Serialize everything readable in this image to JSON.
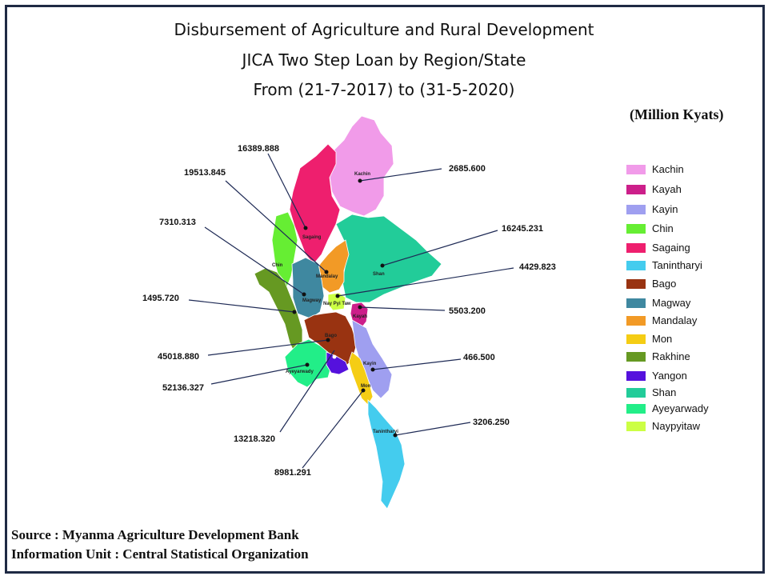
{
  "title": {
    "line1": "Disbursement of Agriculture and Rural Development",
    "line2": "JICA Two Step Loan by Region/State",
    "line3": "From (21-7-2017) to (31-5-2020)"
  },
  "unit": "(Million  Kyats)",
  "source": {
    "line1": "Source : Myanma Agriculture Development Bank",
    "line2": "Information Unit : Central Statistical Organization"
  },
  "legend": [
    {
      "label": "Kachin",
      "color": "#f19be9"
    },
    {
      "label": "Kayah",
      "color": "#cc1f8a"
    },
    {
      "label": "Kayin",
      "color": "#9f9ff0"
    },
    {
      "label": "Chin",
      "color": "#66ee33"
    },
    {
      "label": "Sagaing",
      "color": "#ee1f6e"
    },
    {
      "label": "Tanintharyi",
      "color": "#44ccee"
    },
    {
      "label": "Bago",
      "color": "#993311"
    },
    {
      "label": "Magway",
      "color": "#3f88a0"
    },
    {
      "label": "Mandalay",
      "color": "#f29a26"
    },
    {
      "label": "Mon",
      "color": "#f5cd14"
    },
    {
      "label": "Rakhine",
      "color": "#669922"
    },
    {
      "label": "Yangon",
      "color": "#5511dd"
    },
    {
      "label": "Shan",
      "color": "#22cc99"
    },
    {
      "label": "Ayeyarwady",
      "color": "#22ee88"
    },
    {
      "label": "Naypyitaw",
      "color": "#ccff44"
    }
  ],
  "region_labels": {
    "kachin": "Kachin",
    "sagaing": "Sagaing",
    "chin": "Chin",
    "mandalay": "Mandalay",
    "magway": "Magway",
    "shan": "Shan",
    "naypyitaw": "Nay Pyi Taw",
    "kayah": "Kayah",
    "bago": "Bago",
    "ayeyarwady": "Ayeyarwady",
    "kayin": "Kayin",
    "mon": "Mon",
    "tanintharyi": "Tanintharyi"
  },
  "callouts": {
    "sagaing": "16389.888",
    "mandalay": "19513.845",
    "magway": "7310.313",
    "kachin": "2685.600",
    "shan": "16245.231",
    "naypyitaw": "4429.823",
    "kayah": "5503.200",
    "rakhine": "1495.720",
    "bago": "45018.880",
    "ayeyarwady": "52136.327",
    "kayin": "466.500",
    "yangon": "13218.320",
    "tanintharyi": "3206.250",
    "mon": "8981.291"
  }
}
